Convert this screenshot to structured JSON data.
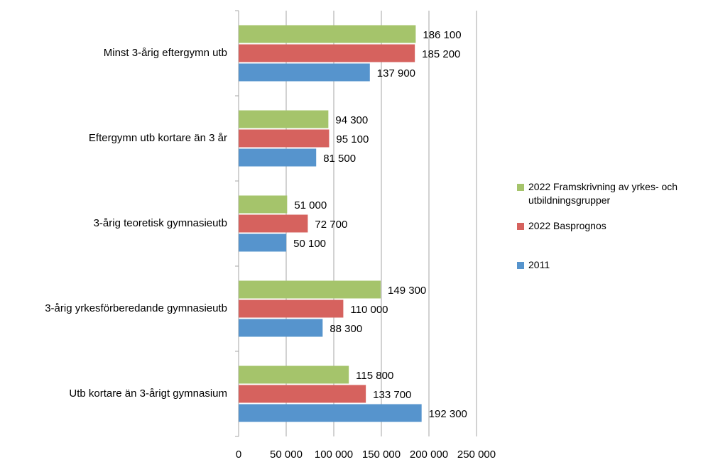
{
  "chart_data": {
    "type": "hbar",
    "categories": [
      "Minst 3-årig eftergymn utb",
      "Eftergymn utb kortare än 3 år",
      "3-årig teoretisk gymnasieutb",
      "3-årig yrkesförberedande gymnasieutb",
      "Utb kortare än 3-årigt gymnasium"
    ],
    "series": [
      {
        "name": "2022 Framskrivning av yrkes- och utbildningsgrupper",
        "color": "#a5c46b",
        "values": [
          186100,
          94300,
          51000,
          149300,
          115800
        ],
        "value_labels": [
          "186 100",
          "94 300",
          "51 000",
          "149 300",
          "115 800"
        ]
      },
      {
        "name": "2022 Basprognos",
        "color": "#d6625e",
        "values": [
          185200,
          95100,
          72700,
          110000,
          133700
        ],
        "value_labels": [
          "185 200",
          "95 100",
          "72 700",
          "110 000",
          "133 700"
        ]
      },
      {
        "name": "2011",
        "color": "#5694cd",
        "values": [
          137900,
          81500,
          50100,
          88300,
          192300
        ],
        "value_labels": [
          "137 900",
          "81 500",
          "50 100",
          "88 300",
          "192 300"
        ]
      }
    ],
    "xlim": [
      0,
      250000
    ],
    "xticks": [
      0,
      {
        "value": 50000,
        "label": "50 000"
      },
      {
        "value": 100000,
        "label": "100 000"
      },
      {
        "value": 150000,
        "label": "150 000"
      },
      {
        "value": 200000,
        "label": "200 000"
      },
      {
        "value": 250000,
        "label": "250 000"
      }
    ],
    "grid": true,
    "legend": "right"
  }
}
